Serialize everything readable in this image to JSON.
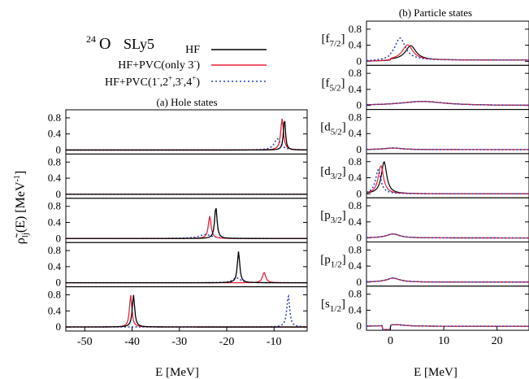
{
  "chart_data": [
    {
      "type": "line",
      "title": "(a) Hole states",
      "xlabel": "E [MeV]",
      "ylabel_main": "ρ̃",
      "ylabel_sub": "lj",
      "ylabel_tail": "(E) [MeV",
      "ylabel_exp": "-1",
      "ylabel_close": "]",
      "xlim": [
        -54,
        -3
      ],
      "xticks": [
        -50,
        -40,
        -30,
        -20,
        -10
      ],
      "xtick_labels": [
        "-50",
        "-40",
        "-30",
        "-20",
        "-10"
      ],
      "ylim": [
        -0.1,
        1.0
      ],
      "yticks": [
        0,
        0.4,
        0.8
      ],
      "ytick_labels": [
        "0",
        "0.4",
        "0.8"
      ],
      "panels": [
        {
          "states": [
            {
              "series": "HF",
              "x0": -7.8,
              "width": 0.25,
              "peak": 0.8
            },
            {
              "series": "PVC3",
              "x0": -8.3,
              "width": 0.35,
              "peak": 0.78
            },
            {
              "series": "PVCall",
              "x0": -9.3,
              "width": 0.8,
              "peak": 0.28
            }
          ]
        },
        {
          "states": [
            {
              "series": "HF",
              "x0": 0,
              "width": 1,
              "peak": 0
            },
            {
              "series": "PVC3",
              "x0": 0,
              "width": 1,
              "peak": 0
            },
            {
              "series": "PVCall",
              "x0": 0,
              "width": 1,
              "peak": 0
            }
          ]
        },
        {
          "states": [
            {
              "series": "HF",
              "x0": -22.3,
              "width": 0.3,
              "peak": 0.8
            },
            {
              "series": "PVC3",
              "x0": -23.6,
              "width": 0.35,
              "peak": 0.56
            },
            {
              "series": "PVCall",
              "x0": -24.5,
              "width": 1.6,
              "peak": 0.1
            }
          ]
        },
        {
          "states": [
            {
              "series": "HF",
              "x0": -17.5,
              "width": 0.3,
              "peak": 0.78
            },
            {
              "series": "PVC3",
              "x0": -12.1,
              "width": 0.4,
              "peak": 0.26
            },
            {
              "series": "PVCall",
              "x0": -17.9,
              "width": 1.0,
              "peak": 0.12
            }
          ]
        },
        {
          "states": [
            {
              "series": "HF",
              "x0": -39.7,
              "width": 0.3,
              "peak": 0.8
            },
            {
              "series": "PVC3",
              "x0": -40.3,
              "width": 0.3,
              "peak": 0.8
            },
            {
              "series": "PVCall",
              "x0": -7.0,
              "width": 0.35,
              "peak": 0.8
            }
          ]
        }
      ]
    },
    {
      "type": "line",
      "title": "(b) Particle states",
      "xlabel": "E [MeV]",
      "xlim": [
        -4.5,
        26
      ],
      "xticks": [
        0,
        10,
        20
      ],
      "xtick_labels": [
        "0",
        "10",
        "20"
      ],
      "ylim": [
        -0.1,
        1.0
      ],
      "yticks": [
        0,
        0.4,
        0.8
      ],
      "ytick_labels": [
        "0",
        "0.4",
        "0.8"
      ],
      "panels": [
        {
          "label_main": "[f",
          "label_sub": "7/2",
          "label_close": "]"
        },
        {
          "label_main": "[f",
          "label_sub": "5/2",
          "label_close": "]"
        },
        {
          "label_main": "[d",
          "label_sub": "5/2",
          "label_close": "]"
        },
        {
          "label_main": "[d",
          "label_sub": "3/2",
          "label_close": "]"
        },
        {
          "label_main": "[p",
          "label_sub": "3/2",
          "label_close": "]"
        },
        {
          "label_main": "[p",
          "label_sub": "1/2",
          "label_close": "]"
        },
        {
          "label_main": "[s",
          "label_sub": "1/2",
          "label_close": "]"
        }
      ]
    }
  ],
  "header": {
    "mass_number": "24",
    "nucleus": "O",
    "force": "SLy5"
  },
  "legend": {
    "placement": "top-left",
    "items": [
      {
        "label": "HF",
        "color": "#000000",
        "style": "solid"
      },
      {
        "label": "HF+PVC(only 3",
        "sup": "-",
        "tail": ")",
        "color": "#e8213a",
        "style": "solid"
      },
      {
        "label": "HF+PVC(1",
        "parts": [
          [
            "-",
            ",2"
          ],
          [
            "+",
            ",3"
          ],
          [
            "-",
            ",4"
          ],
          [
            "+",
            ")"
          ]
        ],
        "color": "#2a3fb5",
        "style": "dotted"
      }
    ]
  },
  "colors": {
    "hf": "#000000",
    "pvc3": "#e8213a",
    "pvcall": "#2a3fb5"
  }
}
